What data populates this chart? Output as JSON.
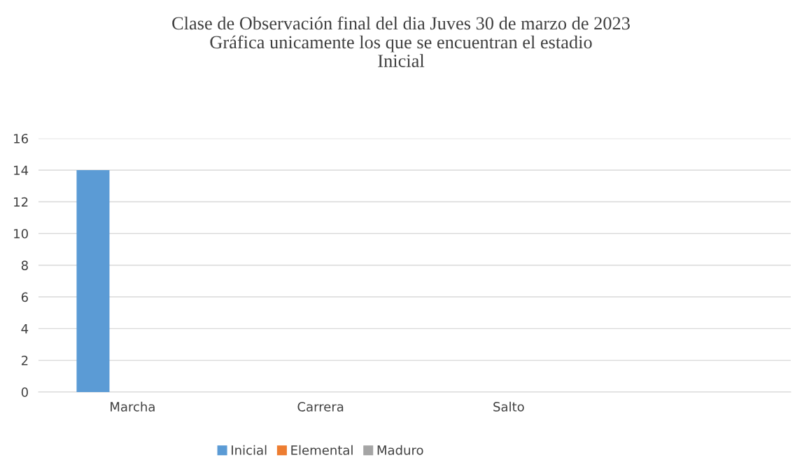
{
  "chart_data": {
    "type": "bar",
    "title": "Clase de Observación final del dia Juves 30 de marzo de 2023\nGráfica unicamente los que se encuentran el estadio\nInicial",
    "categories": [
      "Marcha",
      "Carrera",
      "Salto",
      null
    ],
    "series": [
      {
        "name": "Inicial",
        "color": "#5b9bd5",
        "values": [
          14,
          0,
          0,
          0
        ]
      },
      {
        "name": "Elemental",
        "color": "#ed7d31",
        "values": [
          0,
          0,
          0,
          0
        ]
      },
      {
        "name": "Maduro",
        "color": "#a5a5a5",
        "values": [
          0,
          0,
          0,
          0
        ]
      }
    ],
    "ylim": [
      0,
      16
    ],
    "yticks": [
      0,
      2,
      4,
      6,
      8,
      10,
      12,
      14,
      16
    ],
    "grid": "y",
    "legend": "bottom"
  }
}
